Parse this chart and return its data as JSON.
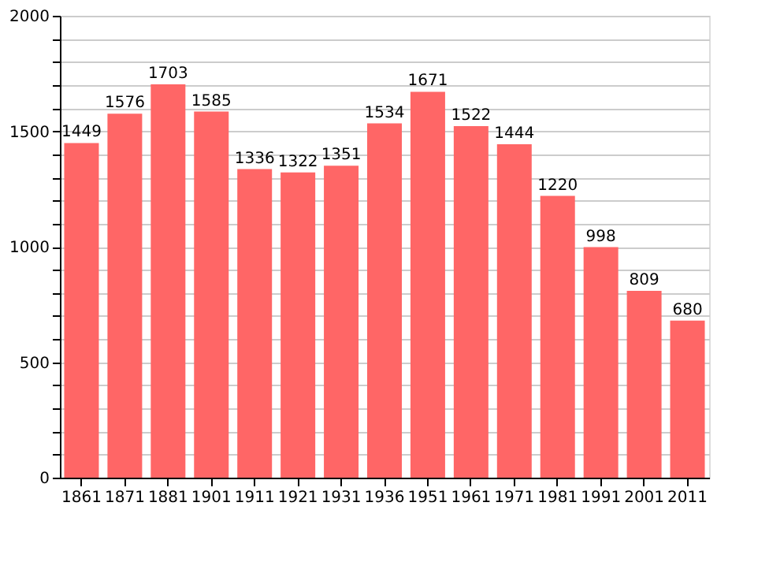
{
  "chart_data": {
    "type": "bar",
    "categories": [
      "1861",
      "1871",
      "1881",
      "1901",
      "1911",
      "1921",
      "1931",
      "1936",
      "1951",
      "1961",
      "1971",
      "1981",
      "1991",
      "2001",
      "2011"
    ],
    "values": [
      1449,
      1576,
      1703,
      1585,
      1336,
      1322,
      1351,
      1534,
      1671,
      1522,
      1444,
      1220,
      998,
      809,
      680
    ],
    "color": "#ff6666",
    "ylim": [
      0,
      2000
    ],
    "yticks": [
      0,
      {
        "value": 100,
        "label": null
      },
      {
        "value": 200,
        "label": null
      },
      {
        "value": 300,
        "label": null
      },
      {
        "value": 400,
        "label": null
      },
      500,
      {
        "value": 600,
        "label": null
      },
      {
        "value": 700,
        "label": null
      },
      {
        "value": 800,
        "label": null
      },
      {
        "value": 900,
        "label": null
      },
      1000,
      {
        "value": 1100,
        "label": null
      },
      {
        "value": 1200,
        "label": null
      },
      {
        "value": 1300,
        "label": null
      },
      {
        "value": 1400,
        "label": null
      },
      1500,
      {
        "value": 1600,
        "label": null
      },
      {
        "value": 1700,
        "label": null
      },
      {
        "value": 1800,
        "label": null
      },
      {
        "value": 1900,
        "label": null
      },
      2000
    ],
    "grid": "y",
    "data_labels": true
  }
}
